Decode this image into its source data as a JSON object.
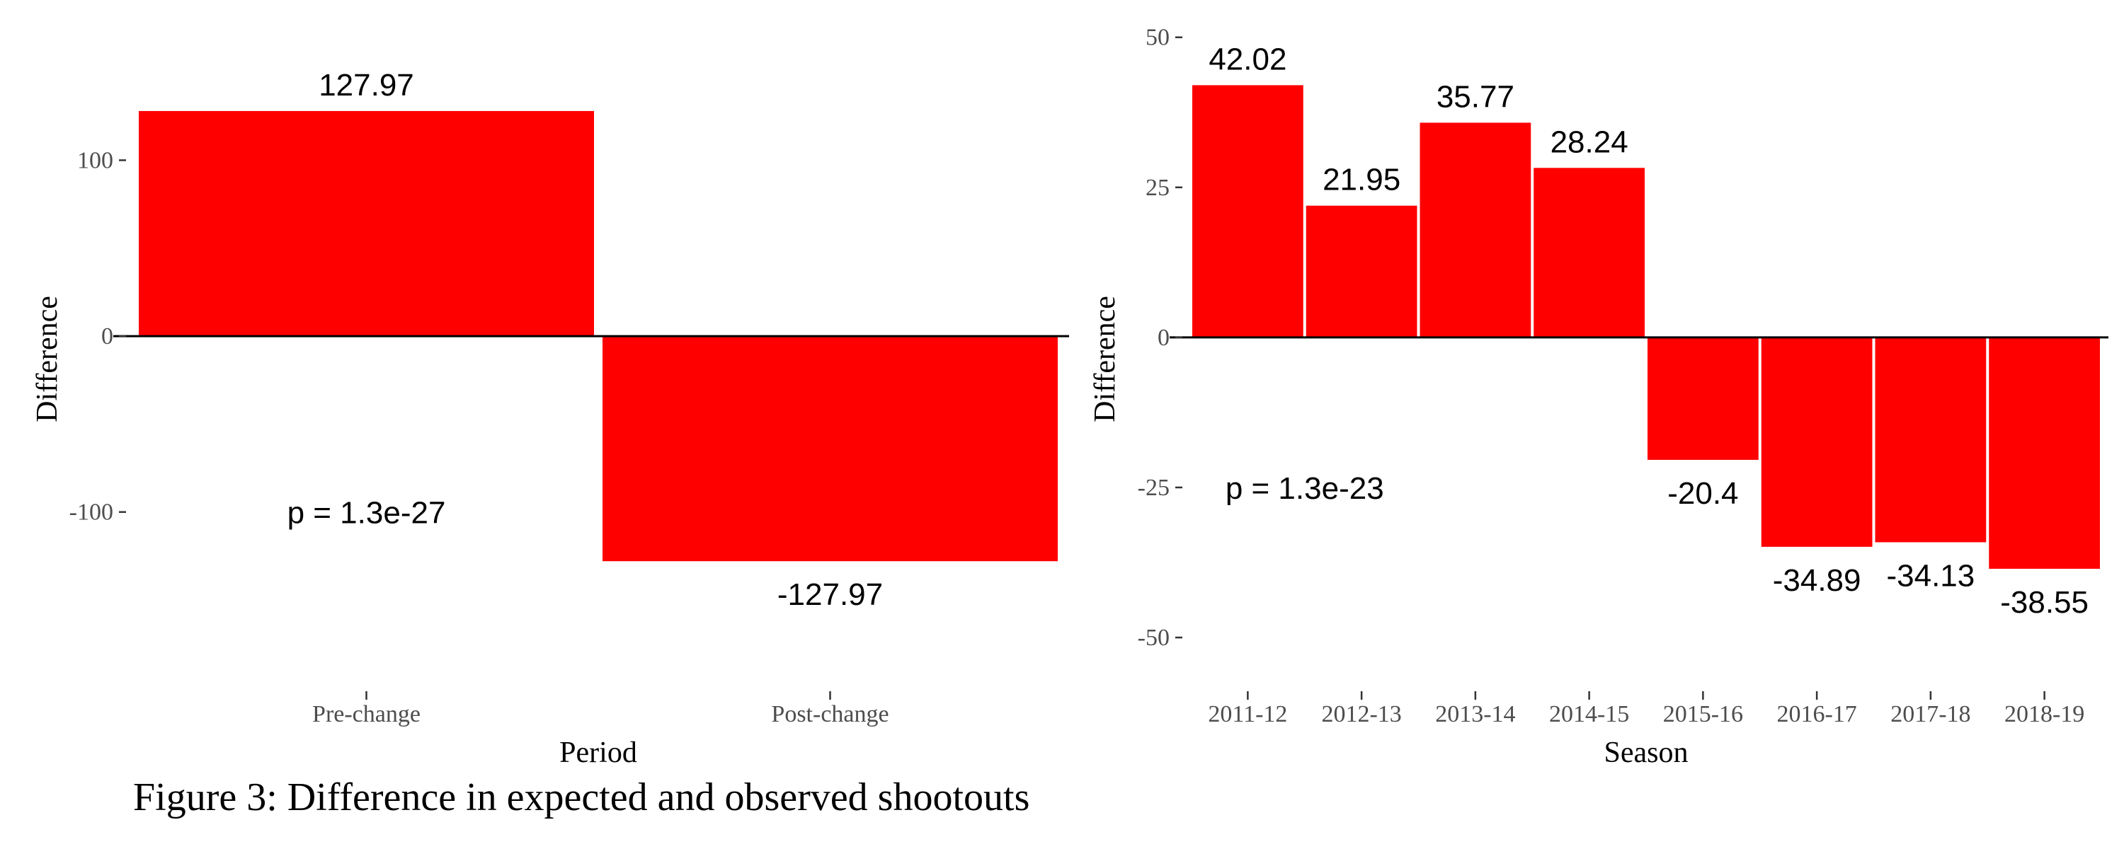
{
  "caption": "Figure 3: Difference in expected and observed shootouts",
  "colors": {
    "bar": "#ff0000",
    "zero_line": "#000000",
    "tick": "#333333",
    "tick_label": "#4d4d4d"
  },
  "chart_data": [
    {
      "type": "bar",
      "categories": [
        "Pre-change",
        "Post-change"
      ],
      "values": [
        127.97,
        -127.97
      ],
      "data_labels": [
        "127.97",
        "-127.97"
      ],
      "xlabel": "Period",
      "ylabel": "Difference",
      "ylim": [
        -185,
        175
      ],
      "yticks": [
        100,
        0,
        -100
      ],
      "ytick_labels": [
        "100",
        "0",
        "-100"
      ],
      "annotation": "p = 1.3e-27",
      "annotation_x": 1.0,
      "annotation_y": -100,
      "grid": false,
      "legend": "none"
    },
    {
      "type": "bar",
      "categories": [
        "2011-12",
        "2012-13",
        "2013-14",
        "2014-15",
        "2015-16",
        "2016-17",
        "2017-18",
        "2018-19"
      ],
      "values": [
        42.02,
        21.95,
        35.77,
        28.24,
        -20.4,
        -34.89,
        -34.13,
        -38.55
      ],
      "data_labels": [
        "42.02",
        "21.95",
        "35.77",
        "28.24",
        "-20.4",
        "-34.89",
        "-34.13",
        "-38.55"
      ],
      "xlabel": "Season",
      "ylabel": "Difference",
      "ylim": [
        -54,
        51.5
      ],
      "yticks": [
        50,
        25,
        0,
        -25,
        -50
      ],
      "ytick_labels": [
        "50",
        "25",
        "0",
        "-25",
        "-50"
      ],
      "annotation": "p = 1.3e-23",
      "annotation_x": 2.0,
      "annotation_y": -25,
      "grid": false,
      "legend": "none"
    }
  ]
}
